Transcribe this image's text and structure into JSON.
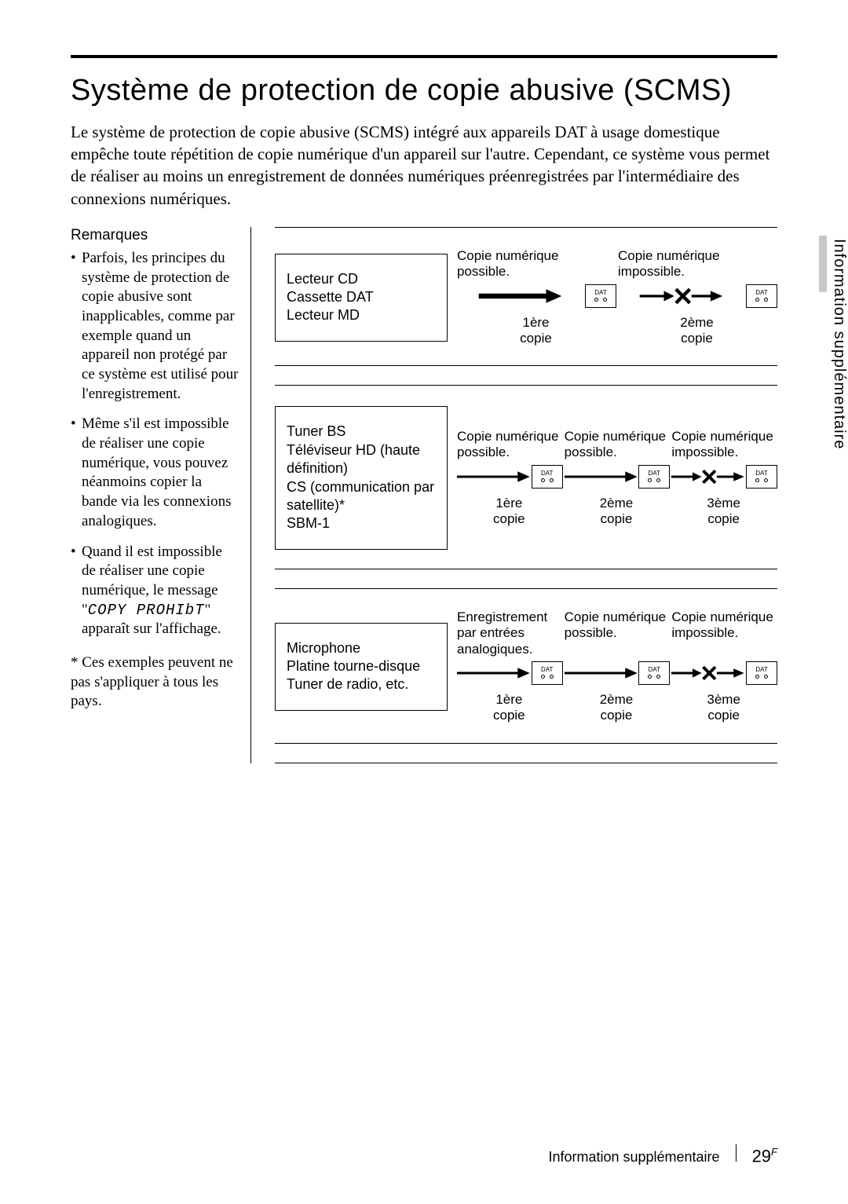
{
  "title": "Système de protection de copie abusive (SCMS)",
  "intro": "Le système de protection de copie abusive (SCMS) intégré aux appareils DAT à usage domestique empêche toute répétition de copie numérique d'un appareil sur l'autre. Cependant, ce système vous permet de réaliser au moins un enregistrement de données numériques préenregistrées par l'intermédiaire des connexions numériques.",
  "remarks_heading": "Remarques",
  "remarks": [
    "Parfois, les principes du système de protection de copie abusive sont inapplicables, comme par exemple quand un appareil non protégé par ce système est utilisé pour l'enregistrement.",
    "Même s'il est impossible de réaliser une copie numérique, vous pouvez néanmoins copier la bande via les connexions analogiques."
  ],
  "remark3_pre": "Quand il est impossible de réaliser une copie numérique, le message \"",
  "remark3_seg": "COPY PROHIbT",
  "remark3_post": "\" apparaît sur l'affichage.",
  "footnote": "* Ces exemples peuvent ne pas s'appliquer à tous les pays.",
  "dat_label": "DAT",
  "diagrams": [
    {
      "source": "Lecteur CD\nCassette DAT\nLecteur MD",
      "steps": [
        {
          "top": "Copie numérique possible.",
          "bot": "1ère copie",
          "arrow": "bold",
          "after_dat": true
        },
        {
          "top": "Copie numérique impossible.",
          "bot": "2ème copie",
          "arrow": "cross",
          "after_dat": true
        }
      ]
    },
    {
      "source": "Tuner BS\nTéléviseur HD (haute définition)\nCS (communication par satellite)*\nSBM-1",
      "steps": [
        {
          "top": "Copie numérique possible.",
          "bot": "1ère copie",
          "arrow": "thin",
          "after_dat": true
        },
        {
          "top": "Copie numérique possible.",
          "bot": "2ème copie",
          "arrow": "thin",
          "after_dat": true
        },
        {
          "top": "Copie numérique impossible.",
          "bot": "3ème copie",
          "arrow": "cross",
          "after_dat": true
        }
      ]
    },
    {
      "source": "Microphone\nPlatine tourne-disque\nTuner de radio, etc.",
      "steps": [
        {
          "top": "Enregistrement par entrées analogiques.",
          "bot": "1ère copie",
          "arrow": "thin",
          "after_dat": true
        },
        {
          "top": "Copie numérique possible.",
          "bot": "2ème copie",
          "arrow": "thin",
          "after_dat": true
        },
        {
          "top": "Copie numérique impossible.",
          "bot": "3ème copie",
          "arrow": "cross",
          "after_dat": true
        }
      ]
    }
  ],
  "side_label": "Information supplémentaire",
  "footer_label": "Information supplémentaire",
  "page_number": "29",
  "page_suffix": "F",
  "colors": {
    "text": "#000000",
    "bg": "#ffffff",
    "tab": "#c8c8c8"
  }
}
